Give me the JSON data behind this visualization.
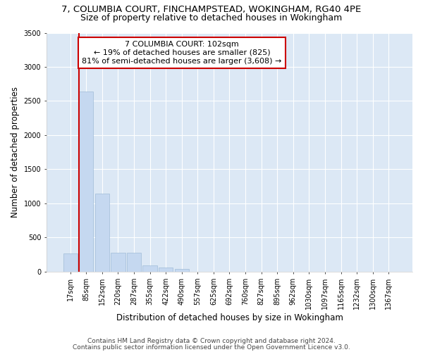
{
  "title": "7, COLUMBIA COURT, FINCHAMPSTEAD, WOKINGHAM, RG40 4PE",
  "subtitle": "Size of property relative to detached houses in Wokingham",
  "xlabel": "Distribution of detached houses by size in Wokingham",
  "ylabel": "Number of detached properties",
  "bar_values": [
    270,
    2640,
    1140,
    280,
    280,
    90,
    55,
    40,
    0,
    0,
    0,
    0,
    0,
    0,
    0,
    0,
    0,
    0,
    0,
    0,
    0
  ],
  "bar_labels": [
    "17sqm",
    "85sqm",
    "152sqm",
    "220sqm",
    "287sqm",
    "355sqm",
    "422sqm",
    "490sqm",
    "557sqm",
    "625sqm",
    "692sqm",
    "760sqm",
    "827sqm",
    "895sqm",
    "962sqm",
    "1030sqm",
    "1097sqm",
    "1165sqm",
    "1232sqm",
    "1300sqm",
    "1367sqm"
  ],
  "bar_color": "#c5d8f0",
  "bar_edge_color": "#a0bcd8",
  "red_line_color": "#cc0000",
  "annotation_box_color": "#ffffff",
  "annotation_box_edge_color": "#cc0000",
  "property_label": "7 COLUMBIA COURT: 102sqm",
  "annotation_line1": "← 19% of detached houses are smaller (825)",
  "annotation_line2": "81% of semi-detached houses are larger (3,608) →",
  "ylim": [
    0,
    3500
  ],
  "yticks": [
    0,
    500,
    1000,
    1500,
    2000,
    2500,
    3000,
    3500
  ],
  "footer1": "Contains HM Land Registry data © Crown copyright and database right 2024.",
  "footer2": "Contains public sector information licensed under the Open Government Licence v3.0.",
  "background_color": "#ffffff",
  "plot_background_color": "#dce8f5",
  "grid_color": "#ffffff",
  "title_fontsize": 9.5,
  "subtitle_fontsize": 9,
  "axis_label_fontsize": 8.5,
  "tick_fontsize": 7,
  "footer_fontsize": 6.5,
  "annotation_fontsize": 8
}
